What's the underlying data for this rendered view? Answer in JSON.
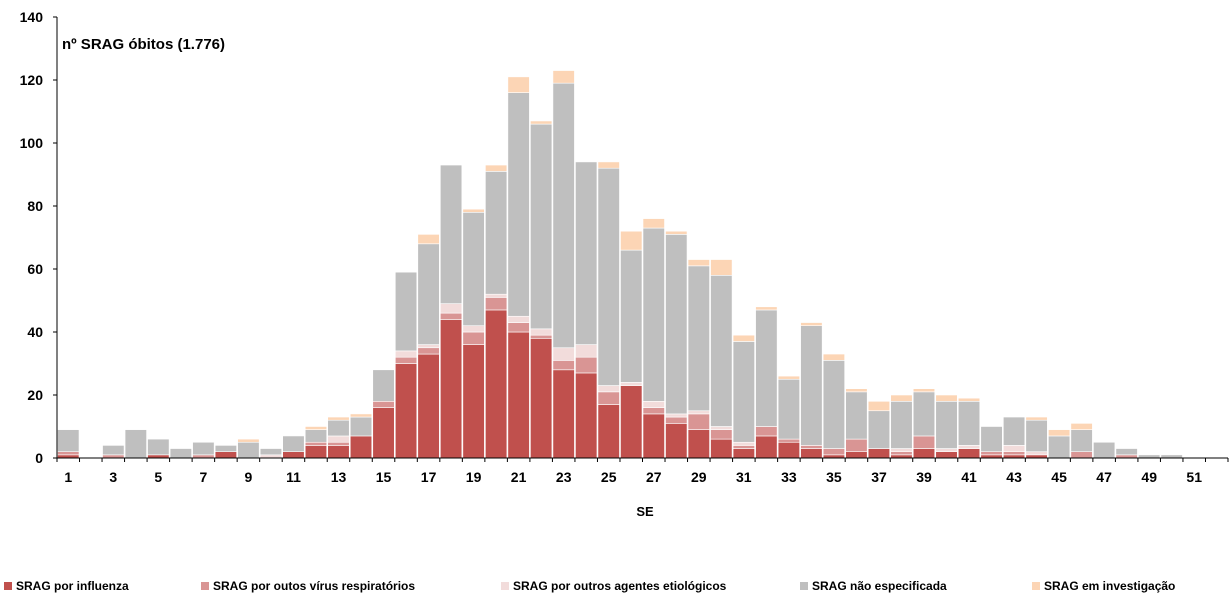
{
  "chart_data": {
    "type": "bar",
    "stacked": true,
    "annotation": "nº SRAG óbitos (1.776)",
    "xlabel": "SE",
    "ylabel": "",
    "ylim": [
      0,
      140
    ],
    "yticks": [
      0,
      20,
      40,
      60,
      80,
      100,
      120,
      140
    ],
    "x": [
      1,
      2,
      3,
      4,
      5,
      6,
      7,
      8,
      9,
      10,
      11,
      12,
      13,
      14,
      15,
      16,
      17,
      18,
      19,
      20,
      21,
      22,
      23,
      24,
      25,
      26,
      27,
      28,
      29,
      30,
      31,
      32,
      33,
      34,
      35,
      36,
      37,
      38,
      39,
      40,
      41,
      42,
      43,
      44,
      45,
      46,
      47,
      48,
      49,
      50,
      51,
      52
    ],
    "xtick_labels": [
      "1",
      "3",
      "5",
      "7",
      "9",
      "11",
      "13",
      "15",
      "17",
      "19",
      "21",
      "23",
      "25",
      "27",
      "29",
      "31",
      "33",
      "35",
      "37",
      "39",
      "41",
      "43",
      "45",
      "47",
      "49",
      "51"
    ],
    "series": [
      {
        "name": "SRAG por influenza",
        "color": "#c0504d",
        "values": [
          1,
          0,
          0,
          0,
          1,
          0,
          0,
          2,
          0,
          0,
          2,
          4,
          4,
          7,
          16,
          30,
          33,
          44,
          36,
          47,
          40,
          38,
          28,
          27,
          17,
          23,
          14,
          11,
          9,
          6,
          3,
          7,
          5,
          3,
          1,
          2,
          3,
          1,
          3,
          2,
          3,
          1,
          1,
          1,
          0,
          0,
          0,
          0,
          0,
          0,
          0,
          0
        ]
      },
      {
        "name": "SRAG por outos vírus respiratórios",
        "color": "#d99594",
        "values": [
          1,
          0,
          1,
          0,
          0,
          0,
          1,
          0,
          0,
          0,
          0,
          1,
          1,
          0,
          2,
          2,
          2,
          2,
          4,
          4,
          3,
          1,
          3,
          5,
          4,
          0,
          2,
          2,
          5,
          3,
          1,
          3,
          1,
          1,
          2,
          4,
          0,
          1,
          4,
          0,
          0,
          1,
          1,
          0,
          0,
          2,
          0,
          1,
          0,
          0,
          0,
          0
        ]
      },
      {
        "name": "SRAG por outros agentes etiológicos",
        "color": "#f2dcdb",
        "values": [
          0,
          0,
          0,
          0,
          0,
          0,
          0,
          0,
          0,
          1,
          0,
          0,
          2,
          0,
          0,
          2,
          1,
          3,
          2,
          1,
          2,
          2,
          4,
          4,
          2,
          1,
          2,
          1,
          1,
          1,
          1,
          0,
          0,
          0,
          0,
          0,
          0,
          1,
          0,
          1,
          1,
          0,
          2,
          1,
          0,
          0,
          0,
          0,
          0,
          0,
          0,
          0
        ]
      },
      {
        "name": "SRAG não especificada",
        "color": "#bfbfbf",
        "values": [
          7,
          0,
          3,
          9,
          5,
          3,
          4,
          2,
          5,
          2,
          5,
          4,
          5,
          6,
          10,
          25,
          32,
          44,
          36,
          39,
          71,
          65,
          84,
          58,
          69,
          42,
          55,
          57,
          46,
          48,
          32,
          37,
          19,
          38,
          28,
          15,
          12,
          15,
          14,
          15,
          14,
          8,
          9,
          10,
          7,
          7,
          5,
          2,
          1,
          1,
          0,
          0
        ]
      },
      {
        "name": "SRAG em investigação",
        "color": "#fcd5b5",
        "values": [
          0,
          0,
          0,
          0,
          0,
          0,
          0,
          0,
          1,
          0,
          0,
          1,
          1,
          1,
          0,
          0,
          3,
          0,
          1,
          2,
          5,
          1,
          4,
          0,
          2,
          6,
          3,
          1,
          2,
          5,
          2,
          1,
          1,
          1,
          2,
          1,
          3,
          2,
          1,
          2,
          1,
          0,
          0,
          1,
          2,
          2,
          0,
          0,
          0,
          0,
          0,
          0
        ]
      }
    ],
    "legend_placement": "bottom",
    "grid": false
  }
}
